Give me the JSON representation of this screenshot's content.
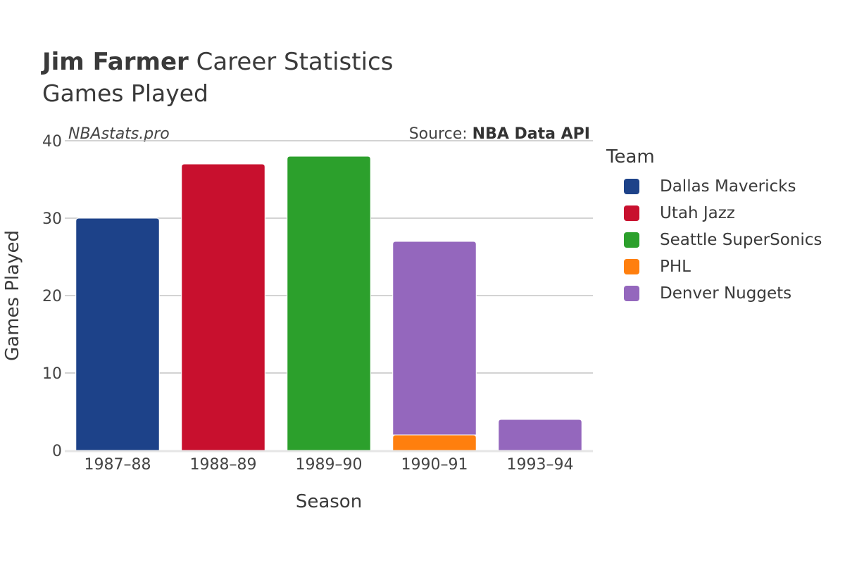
{
  "header": {
    "player_name": "Jim Farmer",
    "title_rest": "Career Statistics",
    "subtitle": "Games Played",
    "credit": "NBAstats.pro",
    "source_prefix": "Source: ",
    "source_name": "NBA Data API"
  },
  "legend": {
    "title": "Team",
    "items": [
      {
        "label": "Dallas Mavericks",
        "color": "#1d4289"
      },
      {
        "label": "Utah Jazz",
        "color": "#c8102e"
      },
      {
        "label": "Seattle SuperSonics",
        "color": "#2ca02c"
      },
      {
        "label": "PHL",
        "color": "#ff7f0e"
      },
      {
        "label": "Denver Nuggets",
        "color": "#9467bd"
      }
    ]
  },
  "chart_data": {
    "type": "bar",
    "stacked": true,
    "title": "Jim Farmer Career Statistics",
    "subtitle": "Games Played",
    "xlabel": "Season",
    "ylabel": "Games Played",
    "categories": [
      "1987–88",
      "1988–89",
      "1989–90",
      "1990–91",
      "1993–94"
    ],
    "yticks": [
      0,
      10,
      20,
      30,
      40
    ],
    "ylim": [
      0,
      40
    ],
    "grid": true,
    "legend_position": "right",
    "series": [
      {
        "name": "Dallas Mavericks",
        "color": "#1d4289",
        "values": [
          30,
          0,
          0,
          0,
          0
        ]
      },
      {
        "name": "Utah Jazz",
        "color": "#c8102e",
        "values": [
          0,
          37,
          0,
          0,
          0
        ]
      },
      {
        "name": "Seattle SuperSonics",
        "color": "#2ca02c",
        "values": [
          0,
          0,
          38,
          0,
          0
        ]
      },
      {
        "name": "PHL",
        "color": "#ff7f0e",
        "values": [
          0,
          0,
          0,
          2,
          0
        ]
      },
      {
        "name": "Denver Nuggets",
        "color": "#9467bd",
        "values": [
          0,
          0,
          0,
          25,
          4
        ]
      }
    ]
  }
}
